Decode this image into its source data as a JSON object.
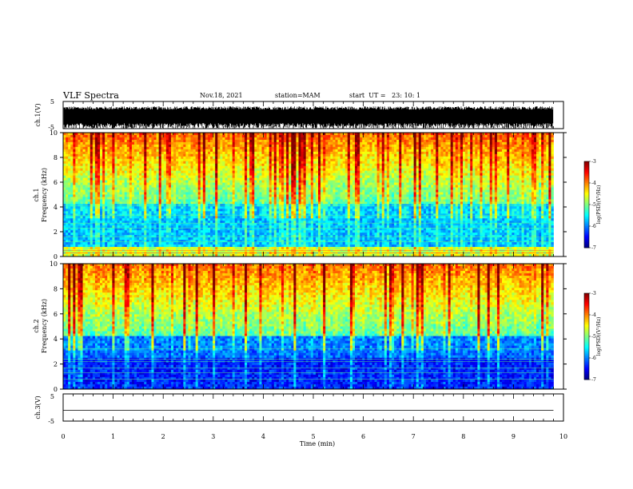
{
  "header": {
    "title": "VLF Spectra",
    "date": "Nov.18, 2021",
    "station": "station=MAM",
    "start": "start  UT =   23: 10: 1"
  },
  "chart_data": [
    {
      "type": "line",
      "panel": "ch1-waveform",
      "ylabel": "ch.1(V)",
      "ylim": [
        -5,
        5
      ],
      "yticks": [
        "5",
        "-5"
      ],
      "description_values": {
        "typical_min": -5,
        "typical_max": 3
      }
    },
    {
      "type": "heatmap",
      "panel": "ch1-spectrogram",
      "ylabel": "ch.1\nFrequency (kHz)",
      "ylim": [
        0,
        10
      ],
      "yticks": [
        "0",
        "2",
        "4",
        "6",
        "8",
        "10"
      ],
      "colorbar": {
        "label": "log(PSD)(V²/Hz)",
        "ticks": [
          "-3",
          "-4",
          "-5",
          "-6",
          "-7"
        ],
        "range": [
          -7,
          -3
        ]
      }
    },
    {
      "type": "heatmap",
      "panel": "ch2-spectrogram",
      "ylabel": "ch.2\nFrequency (kHz)",
      "ylim": [
        0,
        10
      ],
      "yticks": [
        "0",
        "2",
        "4",
        "6",
        "8",
        "10"
      ],
      "colorbar": {
        "label": "log(PSD)(V²/Hz)",
        "ticks": [
          "-3",
          "-4",
          "-5",
          "-6",
          "-7"
        ],
        "range": [
          -7,
          -3
        ]
      }
    },
    {
      "type": "line",
      "panel": "ch3-waveform",
      "ylabel": "ch.3(V)",
      "ylim": [
        -5,
        5
      ],
      "yticks": [
        "5",
        "-5"
      ],
      "values_constant": -1
    }
  ],
  "xaxis": {
    "label": "Time (min)",
    "range": [
      0,
      10
    ],
    "ticks": [
      "0",
      "1",
      "2",
      "3",
      "4",
      "5",
      "6",
      "7",
      "8",
      "9",
      "10"
    ],
    "data_end": 9.8
  },
  "colors": {
    "background": "#ffffff",
    "axis": "#000000"
  }
}
